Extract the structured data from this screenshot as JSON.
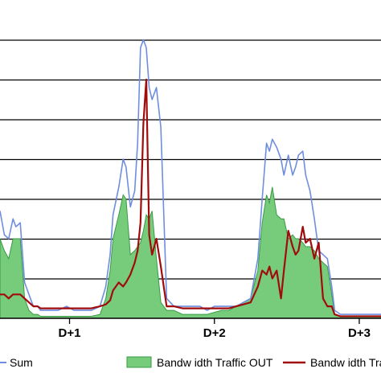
{
  "chart_data": {
    "type": "area",
    "title": "",
    "xlabel": "",
    "ylabel": "",
    "categories_ticks": [
      "D+1",
      "D+2",
      "D+3"
    ],
    "tick_positions": [
      1,
      2,
      3
    ],
    "xlim": [
      0.52,
      3.15
    ],
    "ylim": [
      0,
      8
    ],
    "grid": true,
    "legend_position": "bottom",
    "colors": {
      "sum": "#6f8ee0",
      "traffic_out_fill": "#77cc7c",
      "traffic_out_edge": "#3a9a45",
      "traffic_in": "#a00c0c",
      "grid": "#000000"
    },
    "series": [
      {
        "name": "Sum",
        "legend_label": "Sum",
        "style": "line",
        "x": [
          0.52,
          0.55,
          0.58,
          0.61,
          0.63,
          0.66,
          0.69,
          0.72,
          0.75,
          0.78,
          0.8,
          0.86,
          0.92,
          0.98,
          1.03,
          1.09,
          1.15,
          1.21,
          1.25,
          1.28,
          1.3,
          1.34,
          1.37,
          1.39,
          1.42,
          1.45,
          1.47,
          1.49,
          1.51,
          1.53,
          1.55,
          1.57,
          1.6,
          1.63,
          1.67,
          1.72,
          1.78,
          1.84,
          1.9,
          1.95,
          2.0,
          2.05,
          2.1,
          2.15,
          2.2,
          2.25,
          2.3,
          2.33,
          2.36,
          2.38,
          2.4,
          2.43,
          2.46,
          2.48,
          2.51,
          2.54,
          2.56,
          2.58,
          2.61,
          2.63,
          2.66,
          2.69,
          2.72,
          2.75,
          2.78,
          2.81,
          2.83,
          2.87,
          2.93,
          3.0,
          3.07,
          3.15
        ],
        "values": [
          2.7,
          2.1,
          2.0,
          2.5,
          2.3,
          2.4,
          0.9,
          0.6,
          0.3,
          0.3,
          0.2,
          0.2,
          0.2,
          0.3,
          0.2,
          0.2,
          0.2,
          0.3,
          0.8,
          1.6,
          2.6,
          3.3,
          4.0,
          3.8,
          2.8,
          3.2,
          4.4,
          6.8,
          7.0,
          6.8,
          5.8,
          5.5,
          5.8,
          4.8,
          0.5,
          0.3,
          0.3,
          0.3,
          0.3,
          0.2,
          0.3,
          0.3,
          0.3,
          0.3,
          0.4,
          0.5,
          1.5,
          3.0,
          4.4,
          4.2,
          4.5,
          4.3,
          4.0,
          3.6,
          4.1,
          3.6,
          3.8,
          4.1,
          4.2,
          3.6,
          3.2,
          2.5,
          1.7,
          1.6,
          1.5,
          0.8,
          0.2,
          0.1,
          0.1,
          0.1,
          0.1,
          0.1
        ]
      },
      {
        "name": "Bandwidth Traffic OUT",
        "legend_label": "Bandw idth Traffic OUT",
        "style": "area",
        "x": [
          0.52,
          0.55,
          0.58,
          0.61,
          0.63,
          0.66,
          0.69,
          0.72,
          0.75,
          0.78,
          0.8,
          0.86,
          0.92,
          0.98,
          1.03,
          1.09,
          1.15,
          1.21,
          1.25,
          1.28,
          1.3,
          1.34,
          1.37,
          1.39,
          1.42,
          1.45,
          1.47,
          1.49,
          1.51,
          1.53,
          1.55,
          1.57,
          1.6,
          1.63,
          1.67,
          1.72,
          1.78,
          1.84,
          1.9,
          1.95,
          2.0,
          2.05,
          2.1,
          2.15,
          2.2,
          2.25,
          2.3,
          2.33,
          2.36,
          2.38,
          2.4,
          2.43,
          2.46,
          2.48,
          2.51,
          2.54,
          2.56,
          2.58,
          2.61,
          2.63,
          2.66,
          2.69,
          2.72,
          2.75,
          2.78,
          2.81,
          2.83,
          2.87,
          2.93,
          3.0,
          3.07,
          3.15
        ],
        "values": [
          2.0,
          1.7,
          1.5,
          2.0,
          2.0,
          2.0,
          0.5,
          0.2,
          0.1,
          0.1,
          0.05,
          0.05,
          0.05,
          0.05,
          0.05,
          0.05,
          0.05,
          0.1,
          0.5,
          1.2,
          2.0,
          2.6,
          3.1,
          3.0,
          1.6,
          1.7,
          1.8,
          1.9,
          2.2,
          2.6,
          2.5,
          2.7,
          1.5,
          0.4,
          0.2,
          0.2,
          0.1,
          0.1,
          0.1,
          0.1,
          0.15,
          0.2,
          0.2,
          0.3,
          0.4,
          0.5,
          1.2,
          2.4,
          3.1,
          2.9,
          3.3,
          2.6,
          2.5,
          2.5,
          2.0,
          2.1,
          2.0,
          2.0,
          1.9,
          1.8,
          1.8,
          1.7,
          1.5,
          1.4,
          1.3,
          0.6,
          0.1,
          0.05,
          0.05,
          0.05,
          0.05,
          0.05
        ]
      },
      {
        "name": "Bandwidth Traffic IN",
        "legend_label": "Bandw idth Traffic",
        "style": "line",
        "x": [
          0.52,
          0.55,
          0.58,
          0.61,
          0.63,
          0.66,
          0.69,
          0.72,
          0.75,
          0.78,
          0.8,
          0.86,
          0.92,
          0.98,
          1.03,
          1.09,
          1.15,
          1.21,
          1.25,
          1.28,
          1.3,
          1.34,
          1.37,
          1.39,
          1.42,
          1.45,
          1.47,
          1.49,
          1.51,
          1.53,
          1.55,
          1.57,
          1.6,
          1.63,
          1.67,
          1.72,
          1.78,
          1.84,
          1.9,
          1.95,
          2.0,
          2.05,
          2.1,
          2.15,
          2.2,
          2.25,
          2.3,
          2.33,
          2.36,
          2.38,
          2.4,
          2.43,
          2.46,
          2.48,
          2.51,
          2.54,
          2.56,
          2.58,
          2.61,
          2.63,
          2.66,
          2.69,
          2.72,
          2.75,
          2.78,
          2.81,
          2.83,
          2.87,
          2.93,
          3.0,
          3.07,
          3.15
        ],
        "values": [
          0.6,
          0.6,
          0.5,
          0.6,
          0.6,
          0.6,
          0.5,
          0.4,
          0.3,
          0.3,
          0.25,
          0.25,
          0.25,
          0.25,
          0.25,
          0.25,
          0.25,
          0.3,
          0.35,
          0.45,
          0.7,
          0.9,
          0.8,
          0.9,
          1.1,
          1.4,
          1.7,
          2.4,
          4.9,
          6.0,
          2.1,
          1.6,
          2.0,
          1.3,
          0.3,
          0.3,
          0.25,
          0.25,
          0.25,
          0.25,
          0.25,
          0.25,
          0.25,
          0.3,
          0.35,
          0.4,
          0.8,
          1.2,
          1.1,
          1.3,
          1.0,
          1.2,
          0.5,
          1.2,
          2.2,
          1.8,
          1.6,
          1.7,
          2.3,
          1.9,
          2.0,
          1.5,
          1.9,
          0.5,
          0.3,
          0.3,
          0.1,
          0.05,
          0.05,
          0.05,
          0.05,
          0.05
        ]
      }
    ]
  }
}
